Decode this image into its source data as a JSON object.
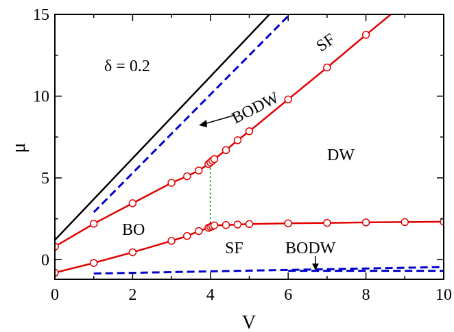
{
  "chart_data": {
    "type": "line",
    "xlabel": "V",
    "ylabel": "μ",
    "xlim": [
      0,
      10
    ],
    "ylim": [
      -1.2,
      15
    ],
    "x_ticks": [
      0,
      2,
      4,
      6,
      8,
      10
    ],
    "y_ticks": [
      0,
      5,
      10,
      15
    ],
    "grid": false,
    "annotations": {
      "delta": "δ = 0.2",
      "bo": "BO",
      "dw": "DW",
      "sf_top": "SF",
      "sf_bottom": "SF",
      "bodw_top": "BODW",
      "bodw_bottom": "BODW"
    },
    "series": [
      {
        "style": "black-solid",
        "color": "#000000",
        "x": [
          0,
          10
        ],
        "y": [
          1.2,
          26.2
        ]
      },
      {
        "style": "blue-dashed",
        "color": "#0000cc",
        "x": [
          1,
          10
        ],
        "y": [
          2.9,
          24.5
        ]
      },
      {
        "style": "red-markers",
        "color": "#e00000",
        "x": [
          0,
          1,
          2,
          3,
          3.4,
          3.7,
          3.95,
          4.0,
          4.05,
          4.1,
          4.4,
          4.7,
          5.0,
          6.0,
          7.0,
          8.0,
          9.0
        ],
        "y": [
          0.8,
          2.2,
          3.45,
          4.7,
          5.1,
          5.45,
          5.85,
          5.95,
          6.05,
          6.15,
          6.7,
          7.3,
          7.85,
          9.8,
          11.75,
          13.75,
          15.7
        ]
      },
      {
        "style": "red-markers",
        "color": "#e00000",
        "x": [
          0,
          1,
          2,
          3,
          3.4,
          3.7,
          3.95,
          4.0,
          4.05,
          4.1,
          4.4,
          4.7,
          5.0,
          6.0,
          7.0,
          8.0,
          9.0,
          10.0
        ],
        "y": [
          -0.8,
          -0.2,
          0.45,
          1.15,
          1.45,
          1.75,
          1.95,
          2.0,
          2.05,
          2.1,
          2.12,
          2.15,
          2.18,
          2.22,
          2.25,
          2.28,
          2.3,
          2.32
        ]
      },
      {
        "style": "blue-dashed",
        "color": "#0000cc",
        "x": [
          1,
          10
        ],
        "y": [
          -0.85,
          -0.45
        ]
      },
      {
        "style": "blue-dashed",
        "color": "#0000cc",
        "x": [
          6,
          10
        ],
        "y": [
          -0.68,
          -0.68
        ]
      },
      {
        "style": "green-dotted",
        "color": "#008800",
        "x": [
          4.0,
          4.0
        ],
        "y": [
          2.0,
          5.95
        ]
      }
    ]
  }
}
